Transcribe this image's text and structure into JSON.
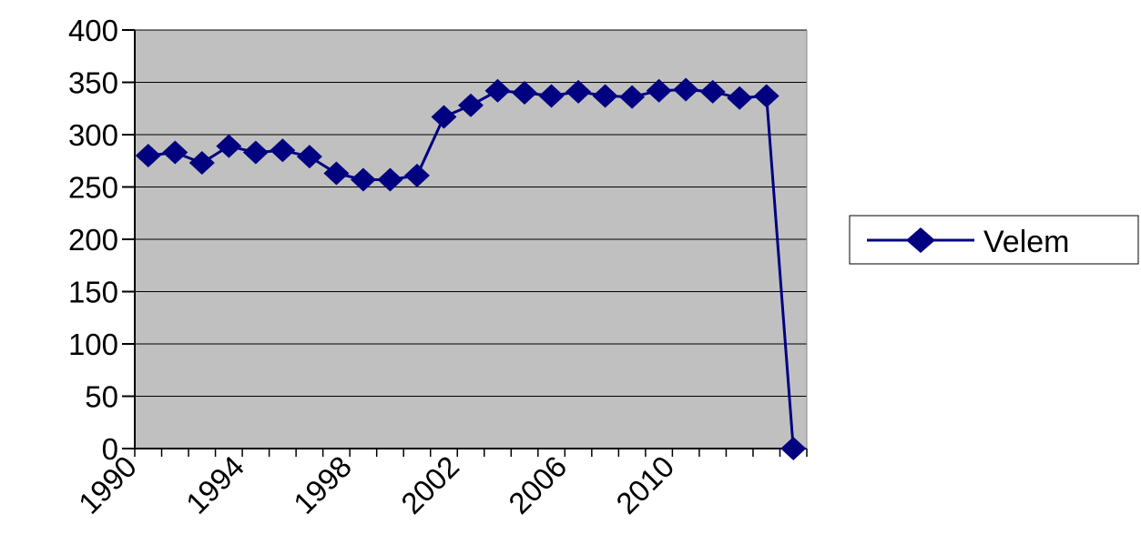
{
  "chart_data": {
    "type": "line",
    "x": [
      1990,
      1991,
      1992,
      1993,
      1994,
      1995,
      1996,
      1997,
      1998,
      1999,
      2000,
      2001,
      2002,
      2003,
      2004,
      2005,
      2006,
      2007,
      2008,
      2009,
      2010,
      2011,
      2012,
      2013,
      2014
    ],
    "series": [
      {
        "name": "Velem",
        "values": [
          280,
          283,
          273,
          289,
          283,
          285,
          279,
          263,
          257,
          257,
          261,
          317,
          328,
          342,
          340,
          337,
          341,
          337,
          336,
          342,
          343,
          341,
          335,
          337,
          0
        ],
        "color": "#000080"
      }
    ],
    "y_ticks": [
      "0",
      "50",
      "100",
      "150",
      "200",
      "250",
      "300",
      "350",
      "400"
    ],
    "x_tick_labels": [
      "1990",
      "1994",
      "1998",
      "2002",
      "2006",
      "2010"
    ],
    "ylim": [
      0,
      400
    ],
    "grid": "horizontal",
    "plot_background": "#c0c0c0",
    "legend_position": "right",
    "marker": "diamond"
  }
}
